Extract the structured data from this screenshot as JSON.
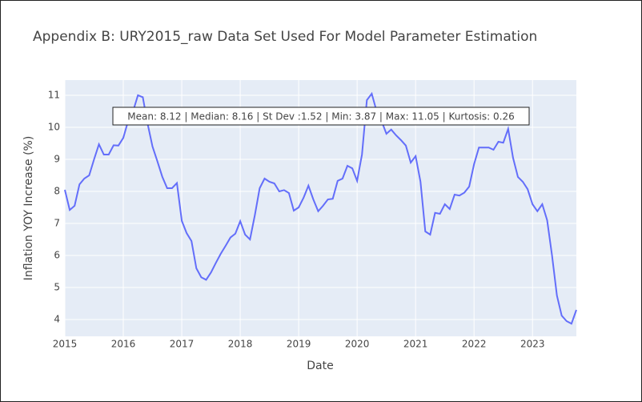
{
  "chart_data": {
    "type": "line",
    "title": "Appendix B: URY2015_raw Data Set Used For Model Parameter Estimation",
    "x_label": "Date",
    "y_label": "Inflation YOY Increase (%)",
    "annotation": "Mean: 8.12 | Median: 8.16 | St Dev :1.52 | Min: 3.87 | Max: 11.05 | Kurtosis: 0.26",
    "xlim": [
      2015,
      2023.75
    ],
    "xticks": [
      2015,
      2016,
      2017,
      2018,
      2019,
      2020,
      2021,
      2022,
      2023
    ],
    "ylim": [
      3.475,
      11.475
    ],
    "yticks": [
      4,
      5,
      6,
      7,
      8,
      9,
      10,
      11
    ],
    "grid": true,
    "x": [
      "2015-01",
      "2015-02",
      "2015-03",
      "2015-04",
      "2015-05",
      "2015-06",
      "2015-07",
      "2015-08",
      "2015-09",
      "2015-10",
      "2015-11",
      "2015-12",
      "2016-01",
      "2016-02",
      "2016-03",
      "2016-04",
      "2016-05",
      "2016-06",
      "2016-07",
      "2016-08",
      "2016-09",
      "2016-10",
      "2016-11",
      "2016-12",
      "2017-01",
      "2017-02",
      "2017-03",
      "2017-04",
      "2017-05",
      "2017-06",
      "2017-07",
      "2017-08",
      "2017-09",
      "2017-10",
      "2017-11",
      "2017-12",
      "2018-01",
      "2018-02",
      "2018-03",
      "2018-04",
      "2018-05",
      "2018-06",
      "2018-07",
      "2018-08",
      "2018-09",
      "2018-10",
      "2018-11",
      "2018-12",
      "2019-01",
      "2019-02",
      "2019-03",
      "2019-04",
      "2019-05",
      "2019-06",
      "2019-07",
      "2019-08",
      "2019-09",
      "2019-10",
      "2019-11",
      "2019-12",
      "2020-01",
      "2020-02",
      "2020-03",
      "2020-04",
      "2020-05",
      "2020-06",
      "2020-07",
      "2020-08",
      "2020-09",
      "2020-10",
      "2020-11",
      "2020-12",
      "2021-01",
      "2021-02",
      "2021-03",
      "2021-04",
      "2021-05",
      "2021-06",
      "2021-07",
      "2021-08",
      "2021-09",
      "2021-10",
      "2021-11",
      "2021-12",
      "2022-01",
      "2022-02",
      "2022-03",
      "2022-04",
      "2022-05",
      "2022-06",
      "2022-07",
      "2022-08",
      "2022-09",
      "2022-10",
      "2022-11",
      "2022-12",
      "2023-01",
      "2023-02",
      "2023-03",
      "2023-04",
      "2023-05",
      "2023-06",
      "2023-07",
      "2023-08",
      "2023-09",
      "2023-10"
    ],
    "series": [
      {
        "color": "#636efa",
        "values": [
          8.05,
          7.42,
          7.55,
          8.22,
          8.4,
          8.5,
          9.0,
          9.47,
          9.15,
          9.15,
          9.44,
          9.43,
          9.67,
          10.2,
          10.5,
          11.0,
          10.94,
          10.1,
          9.4,
          8.94,
          8.46,
          8.1,
          8.1,
          8.26,
          7.08,
          6.7,
          6.45,
          5.6,
          5.32,
          5.24,
          5.47,
          5.77,
          6.05,
          6.3,
          6.56,
          6.68,
          7.07,
          6.65,
          6.5,
          7.25,
          8.1,
          8.4,
          8.3,
          8.25,
          8.0,
          8.04,
          7.95,
          7.4,
          7.5,
          7.8,
          8.18,
          7.75,
          7.38,
          7.55,
          7.75,
          7.77,
          8.33,
          8.4,
          8.8,
          8.72,
          8.33,
          9.15,
          10.85,
          11.05,
          10.5,
          10.2,
          9.8,
          9.93,
          9.75,
          9.6,
          9.43,
          8.9,
          9.1,
          8.3,
          6.75,
          6.65,
          7.33,
          7.3,
          7.6,
          7.45,
          7.9,
          7.87,
          7.96,
          8.15,
          8.85,
          9.37,
          9.37,
          9.37,
          9.3,
          9.55,
          9.52,
          9.95,
          9.05,
          8.45,
          8.3,
          8.07,
          7.6,
          7.38,
          7.6,
          7.1,
          6.0,
          4.75,
          4.12,
          3.95,
          3.87,
          4.3
        ]
      }
    ]
  }
}
